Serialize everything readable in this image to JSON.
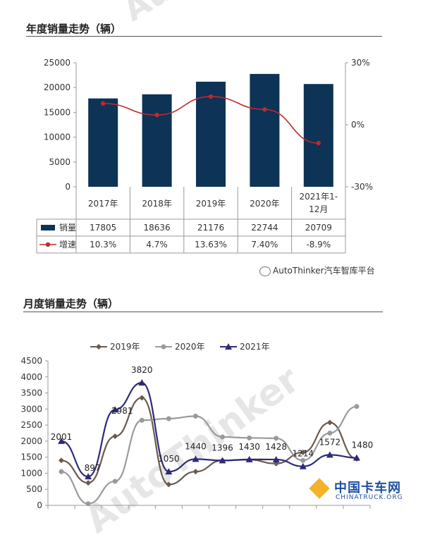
{
  "annual": {
    "title": "年度销量走势（辆）",
    "chart_data": {
      "type": "bar",
      "categories": [
        "2017年",
        "2018年",
        "2019年",
        "2020年",
        "2021年1-12月"
      ],
      "series": [
        {
          "name": "销量",
          "values": [
            17805,
            18636,
            21176,
            22744,
            20709
          ],
          "color": "#0d3356"
        },
        {
          "name": "增速",
          "values": [
            10.3,
            4.7,
            13.63,
            7.4,
            -8.9
          ],
          "color": "#c0282d"
        }
      ],
      "table_values": {
        "销量": [
          "17805",
          "18636",
          "21176",
          "22744",
          "20709"
        ],
        "增速": [
          "10.3%",
          "4.7%",
          "13.63%",
          "7.40%",
          "-8.9%"
        ]
      },
      "ylim": [
        0,
        25000
      ],
      "y_ticks": [
        "0",
        "5000",
        "10000",
        "15000",
        "20000",
        "25000"
      ],
      "y2lim": [
        -30,
        30
      ],
      "y2_ticks": [
        "-30%",
        "0%",
        "30%"
      ]
    }
  },
  "monthly": {
    "title": "月度销量走势（辆）",
    "chart_data": {
      "type": "line",
      "x": [
        1,
        2,
        3,
        4,
        5,
        6,
        7,
        8,
        9,
        10,
        11,
        12
      ],
      "series": [
        {
          "name": "2019年",
          "values": [
            1400,
            700,
            2150,
            3350,
            650,
            1050,
            1400,
            1420,
            1300,
            1650,
            2580,
            1450
          ],
          "color": "#6b5a4e"
        },
        {
          "name": "2020年",
          "values": [
            1050,
            50,
            750,
            2650,
            2700,
            2780,
            2130,
            2100,
            2090,
            1400,
            2250,
            3080
          ],
          "color": "#9a9a9a"
        },
        {
          "name": "2021年",
          "values": [
            2001,
            897,
            2981,
            3820,
            1050,
            1440,
            1396,
            1430,
            1428,
            1214,
            1572,
            1480
          ],
          "color": "#2e2a7a"
        }
      ],
      "data_labels": [
        "2001",
        "897",
        "2981",
        "3820",
        "1050",
        "1440",
        "1396",
        "1430",
        "1428",
        "1214",
        "1572",
        "1480"
      ],
      "ylim": [
        0,
        4500
      ],
      "y_ticks": [
        "0",
        "500",
        "1000",
        "1500",
        "2000",
        "2500",
        "3000",
        "3500",
        "4000",
        "4500"
      ],
      "legend": "top-center"
    }
  },
  "watermarks": {
    "top": "AutoThinker汽车智库平台",
    "credit": "AutoThinker汽车智库平台",
    "bottom_brand": "中国卡车网",
    "bottom_url": "CHINATRUCK.ORG"
  }
}
